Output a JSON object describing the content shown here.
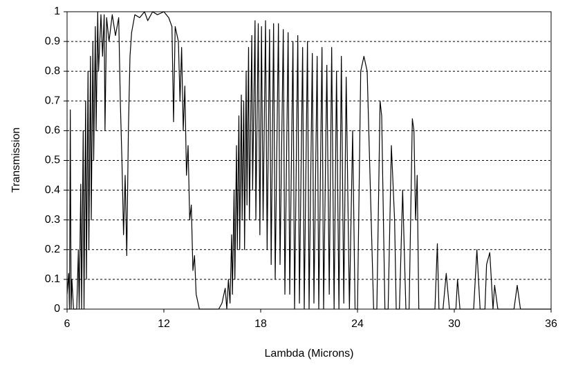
{
  "chart_data": {
    "type": "line",
    "xlabel": "Lambda (Microns)",
    "ylabel": "Transmission",
    "xlim": [
      6,
      36
    ],
    "xticks": [
      6,
      12,
      18,
      24,
      30,
      36
    ],
    "ylim": [
      0,
      1
    ],
    "yticks": [
      0,
      0.1,
      0.2,
      0.3,
      0.4,
      0.5,
      0.6,
      0.7,
      0.8,
      0.9,
      1
    ],
    "grid": true,
    "color": "#000000",
    "x": [
      6.0,
      6.1,
      6.15,
      6.2,
      6.25,
      6.3,
      6.4,
      6.6,
      6.7,
      6.75,
      6.85,
      6.9,
      7.0,
      7.05,
      7.15,
      7.2,
      7.3,
      7.35,
      7.45,
      7.5,
      7.6,
      7.65,
      7.75,
      7.8,
      7.9,
      7.95,
      8.1,
      8.2,
      8.3,
      8.35,
      8.45,
      8.6,
      8.8,
      9.0,
      9.2,
      9.3,
      9.4,
      9.5,
      9.6,
      9.7,
      9.8,
      9.9,
      10.0,
      10.2,
      10.5,
      10.8,
      11.0,
      11.3,
      11.6,
      12.0,
      12.3,
      12.5,
      12.6,
      12.7,
      12.9,
      13.0,
      13.1,
      13.2,
      13.3,
      13.4,
      13.5,
      13.6,
      13.7,
      13.8,
      13.9,
      14.0,
      14.2,
      15.4,
      15.6,
      15.8,
      15.9,
      16.0,
      16.1,
      16.2,
      16.25,
      16.35,
      16.4,
      16.5,
      16.55,
      16.65,
      16.7,
      16.8,
      16.85,
      16.95,
      17.0,
      17.1,
      17.15,
      17.25,
      17.3,
      17.45,
      17.5,
      17.65,
      17.7,
      17.85,
      17.95,
      18.05,
      18.15,
      18.3,
      18.4,
      18.55,
      18.65,
      18.8,
      18.9,
      19.1,
      19.2,
      19.4,
      19.5,
      19.7,
      19.8,
      20.0,
      20.1,
      20.3,
      20.4,
      20.6,
      20.7,
      20.9,
      21.0,
      21.2,
      21.3,
      21.5,
      21.6,
      21.8,
      21.9,
      22.1,
      22.25,
      22.4,
      22.55,
      22.7,
      22.85,
      23.0,
      23.15,
      23.3,
      23.5,
      23.7,
      23.85,
      24.0,
      24.2,
      24.4,
      24.6,
      24.8,
      25.0,
      25.2,
      25.4,
      25.5,
      25.7,
      25.9,
      26.1,
      26.3,
      26.4,
      26.6,
      26.8,
      26.9,
      27.0,
      27.2,
      27.4,
      27.5,
      27.6,
      27.7,
      27.8,
      28.8,
      28.95,
      29.05,
      29.3,
      29.5,
      29.7,
      30.1,
      30.2,
      30.35,
      31.2,
      31.4,
      31.6,
      31.9,
      32.0,
      32.2,
      32.4,
      32.5,
      32.7,
      33.7,
      33.9,
      34.1,
      36.0
    ],
    "values": [
      0.05,
      0.12,
      0.0,
      0.67,
      0.0,
      0.1,
      0.0,
      0.0,
      0.2,
      0.0,
      0.42,
      0.0,
      0.6,
      0.0,
      0.7,
      0.1,
      0.8,
      0.2,
      0.85,
      0.3,
      0.9,
      0.5,
      0.95,
      0.6,
      1.0,
      0.8,
      0.99,
      0.85,
      0.99,
      0.6,
      0.98,
      0.9,
      0.99,
      0.92,
      0.98,
      0.7,
      0.5,
      0.25,
      0.45,
      0.18,
      0.6,
      0.85,
      0.93,
      0.99,
      0.98,
      1.0,
      0.97,
      1.0,
      0.99,
      1.0,
      0.98,
      0.95,
      0.63,
      0.95,
      0.9,
      0.7,
      0.88,
      0.6,
      0.75,
      0.45,
      0.55,
      0.3,
      0.35,
      0.13,
      0.18,
      0.05,
      0.0,
      0.0,
      0.02,
      0.07,
      0.0,
      0.1,
      0.02,
      0.25,
      0.05,
      0.4,
      0.1,
      0.55,
      0.2,
      0.65,
      0.2,
      0.72,
      0.3,
      0.7,
      0.2,
      0.8,
      0.35,
      0.88,
      0.3,
      0.92,
      0.4,
      0.97,
      0.3,
      0.96,
      0.25,
      0.95,
      0.3,
      0.97,
      0.2,
      0.94,
      0.15,
      0.96,
      0.1,
      0.96,
      0.15,
      0.94,
      0.05,
      0.93,
      0.05,
      0.9,
      0.0,
      0.92,
      0.02,
      0.88,
      0.0,
      0.9,
      0.0,
      0.86,
      0.02,
      0.85,
      0.0,
      0.88,
      0.0,
      0.82,
      0.05,
      0.88,
      0.0,
      0.8,
      0.0,
      0.85,
      0.02,
      0.78,
      0.0,
      0.6,
      0.0,
      0.0,
      0.8,
      0.85,
      0.8,
      0.4,
      0.0,
      0.0,
      0.7,
      0.65,
      0.0,
      0.0,
      0.55,
      0.3,
      0.0,
      0.0,
      0.4,
      0.2,
      0.0,
      0.0,
      0.64,
      0.6,
      0.3,
      0.45,
      0.0,
      0.0,
      0.22,
      0.0,
      0.0,
      0.12,
      0.0,
      0.0,
      0.1,
      0.0,
      0.0,
      0.2,
      0.0,
      0.0,
      0.15,
      0.19,
      0.0,
      0.08,
      0.0,
      0.0,
      0.08,
      0.0,
      0.0
    ]
  }
}
